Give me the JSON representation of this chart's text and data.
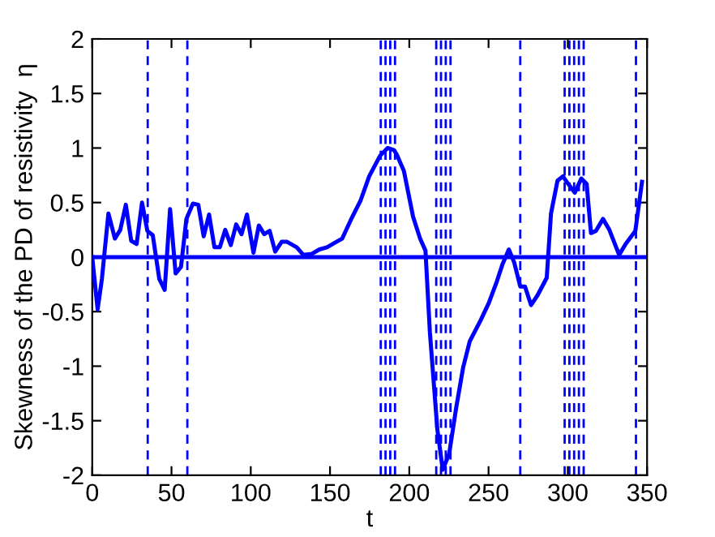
{
  "chart_data": {
    "type": "line",
    "xlabel": "t",
    "ylabel": "Skewness of the PD of resistivity  η",
    "x": [
      0,
      3.4,
      6.1,
      10.2,
      14.3,
      17.7,
      21.2,
      24.6,
      28,
      31.4,
      34.8,
      38.2,
      42.3,
      45.7,
      49.1,
      52.6,
      56,
      59.4,
      63.5,
      66.9,
      70.3,
      73.7,
      77.1,
      80.5,
      83.9,
      87.4,
      90.8,
      94.2,
      97.6,
      101.7,
      105.1,
      108.5,
      111.9,
      115.4,
      119.5,
      122.9,
      129,
      133.1,
      138.6,
      143.3,
      148.1,
      152.9,
      157.7,
      163.1,
      169.3,
      174.7,
      181.6,
      186.3,
      190.4,
      192.1,
      196.6,
      202.4,
      206.8,
      210.2,
      213,
      217.7,
      221.1,
      225.2,
      229.6,
      234,
      238.2,
      245,
      250.2,
      255.3,
      258.7,
      262.8,
      266.2,
      270,
      273,
      276.8,
      280.9,
      286.7,
      289.4,
      293.5,
      296.9,
      300.3,
      304.4,
      308.5,
      311.9,
      314.6,
      317.7,
      322.2,
      326.2,
      332.4,
      336.5,
      342.6,
      346.8
    ],
    "series": [
      {
        "color": "#0000ff",
        "values": [
          0,
          -0.48,
          -0.2,
          0.4,
          0.17,
          0.25,
          0.48,
          0.15,
          0.12,
          0.5,
          0.24,
          0.2,
          -0.2,
          -0.3,
          0.44,
          -0.15,
          -0.09,
          0.35,
          0.49,
          0.48,
          0.19,
          0.39,
          0.09,
          0.09,
          0.25,
          0.11,
          0.3,
          0.21,
          0.39,
          0.04,
          0.29,
          0.21,
          0.24,
          0.05,
          0.14,
          0.14,
          0.09,
          0.02,
          0.03,
          0.07,
          0.09,
          0.13,
          0.17,
          0.34,
          0.52,
          0.74,
          0.93,
          1.0,
          0.98,
          0.94,
          0.79,
          0.37,
          0.17,
          0.06,
          -0.69,
          -1.58,
          -1.95,
          -1.8,
          -1.38,
          -1.01,
          -0.77,
          -0.58,
          -0.42,
          -0.22,
          -0.07,
          0.07,
          -0.05,
          -0.27,
          -0.27,
          -0.44,
          -0.35,
          -0.19,
          0.4,
          0.7,
          0.74,
          0.67,
          0.59,
          0.72,
          0.67,
          0.22,
          0.24,
          0.35,
          0.25,
          0.02,
          0.12,
          0.24,
          0.69
        ]
      }
    ],
    "xlim": [
      0,
      350
    ],
    "xticks": [
      0,
      50,
      100,
      150,
      200,
      250,
      300,
      350
    ],
    "ylim": [
      -2,
      2
    ],
    "yticks": [
      -2,
      -1.5,
      -1,
      -0.5,
      0,
      0.5,
      1,
      1.5,
      2
    ],
    "line_style": "solid",
    "marker": "none",
    "grid": false,
    "legend": false,
    "ref_lines": [
      {
        "axis": "y",
        "value": 0,
        "color": "#0000ff",
        "line_style": "solid"
      },
      {
        "axis": "x",
        "value": 35,
        "color": "#0000ff",
        "line_style": "dashed"
      },
      {
        "axis": "x",
        "value": 60,
        "color": "#0000ff",
        "line_style": "dashed"
      },
      {
        "axis": "x",
        "value": 182,
        "color": "#0000ff",
        "line_style": "dashed"
      },
      {
        "axis": "x",
        "value": 185,
        "color": "#0000ff",
        "line_style": "dashed"
      },
      {
        "axis": "x",
        "value": 188,
        "color": "#0000ff",
        "line_style": "dashed"
      },
      {
        "axis": "x",
        "value": 191,
        "color": "#0000ff",
        "line_style": "dashed"
      },
      {
        "axis": "x",
        "value": 217,
        "color": "#0000ff",
        "line_style": "dashed"
      },
      {
        "axis": "x",
        "value": 220,
        "color": "#0000ff",
        "line_style": "dashed"
      },
      {
        "axis": "x",
        "value": 223,
        "color": "#0000ff",
        "line_style": "dashed"
      },
      {
        "axis": "x",
        "value": 226,
        "color": "#0000ff",
        "line_style": "dashed"
      },
      {
        "axis": "x",
        "value": 270,
        "color": "#0000ff",
        "line_style": "dashed"
      },
      {
        "axis": "x",
        "value": 298,
        "color": "#0000ff",
        "line_style": "dashed"
      },
      {
        "axis": "x",
        "value": 301,
        "color": "#0000ff",
        "line_style": "dashed"
      },
      {
        "axis": "x",
        "value": 304,
        "color": "#0000ff",
        "line_style": "dashed"
      },
      {
        "axis": "x",
        "value": 307,
        "color": "#0000ff",
        "line_style": "dashed"
      },
      {
        "axis": "x",
        "value": 310,
        "color": "#0000ff",
        "line_style": "dashed"
      },
      {
        "axis": "x",
        "value": 343,
        "color": "#0000ff",
        "line_style": "dashed"
      }
    ]
  }
}
